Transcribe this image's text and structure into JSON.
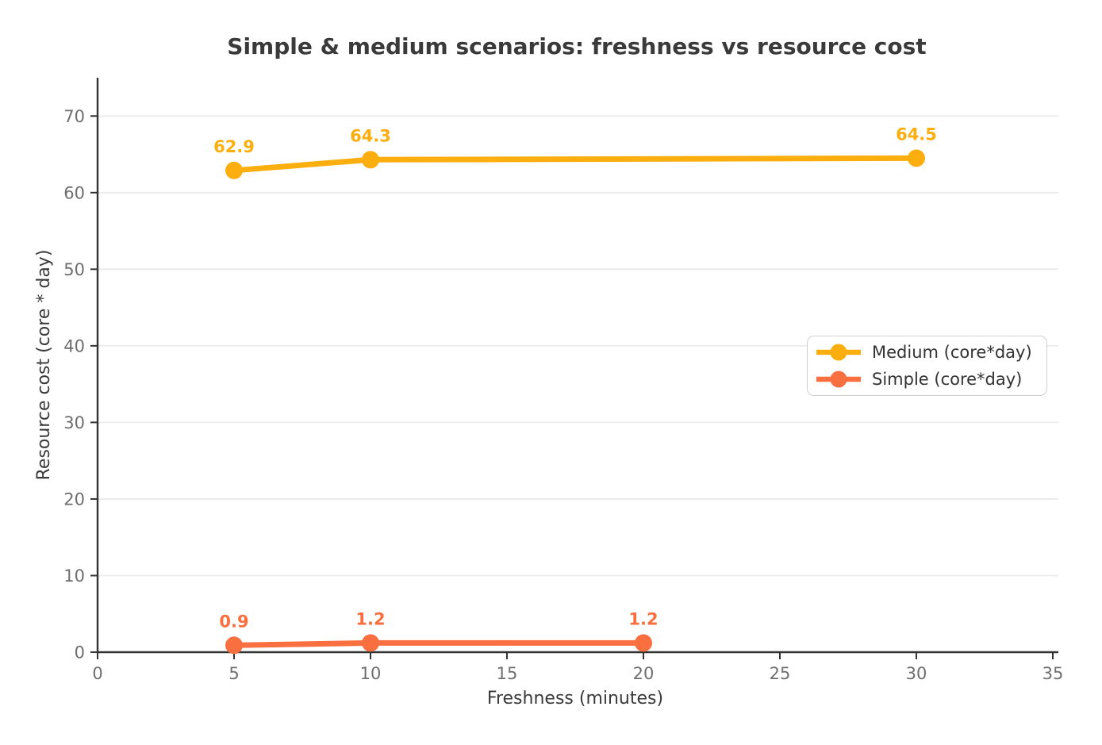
{
  "colors": {
    "background": "#FFFFFF",
    "title_text": "#3A3A3A",
    "axis_label_text": "#3A3A3A",
    "tick_label_text": "#6E6E6E",
    "grid_line": "#EBEBEB",
    "axis_line": "#333333",
    "legend_border": "#CFCFCF",
    "legend_text": "#333333"
  },
  "chart_data": {
    "type": "line",
    "title": "Simple & medium scenarios: freshness vs resource cost",
    "xlabel": "Freshness (minutes)",
    "ylabel": "Resource cost (core * day)",
    "xlim": [
      0,
      35
    ],
    "ylim": [
      0,
      75
    ],
    "xticks": [
      0,
      5,
      10,
      15,
      20,
      25,
      30,
      35
    ],
    "yticks": [
      0,
      10,
      20,
      30,
      40,
      50,
      60,
      70
    ],
    "grid": "horizontal-only",
    "legend_position": "center-right",
    "series": [
      {
        "name": "Medium (core*day)",
        "color": "#FBAE0E",
        "x": [
          5,
          10,
          30
        ],
        "y": [
          62.9,
          64.3,
          64.5
        ],
        "point_labels": [
          "62.9",
          "64.3",
          "64.5"
        ]
      },
      {
        "name": "Simple (core*day)",
        "color": "#F96F40",
        "x": [
          5,
          10,
          20
        ],
        "y": [
          0.9,
          1.2,
          1.2
        ],
        "point_labels": [
          "0.9",
          "1.2",
          "1.2"
        ]
      }
    ]
  }
}
